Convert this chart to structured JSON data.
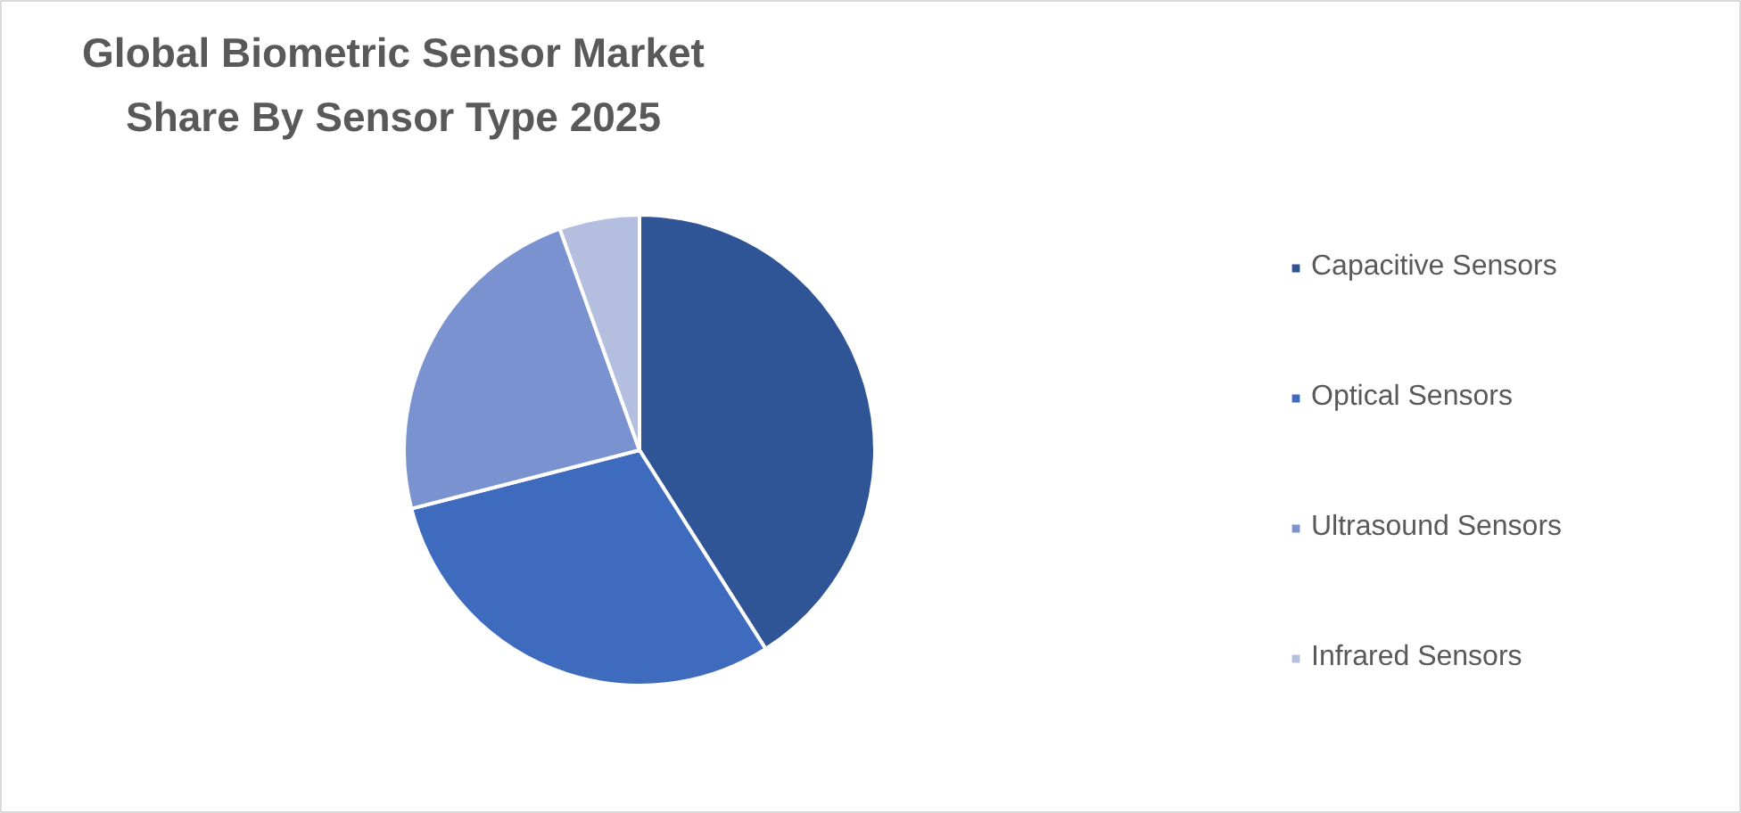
{
  "chart_data": {
    "type": "pie",
    "title": "Global Biometric Sensor Market Share By Sensor Type 2025",
    "categories": [
      "Capacitive Sensors",
      "Optical Sensors",
      "Ultrasound Sensors",
      "Infrared Sensors"
    ],
    "values": [
      41,
      30,
      23.5,
      5.5
    ],
    "colors": [
      "#2f5597",
      "#3e6bbd",
      "#7a93d0",
      "#b4bfe0"
    ],
    "legend": "right"
  }
}
